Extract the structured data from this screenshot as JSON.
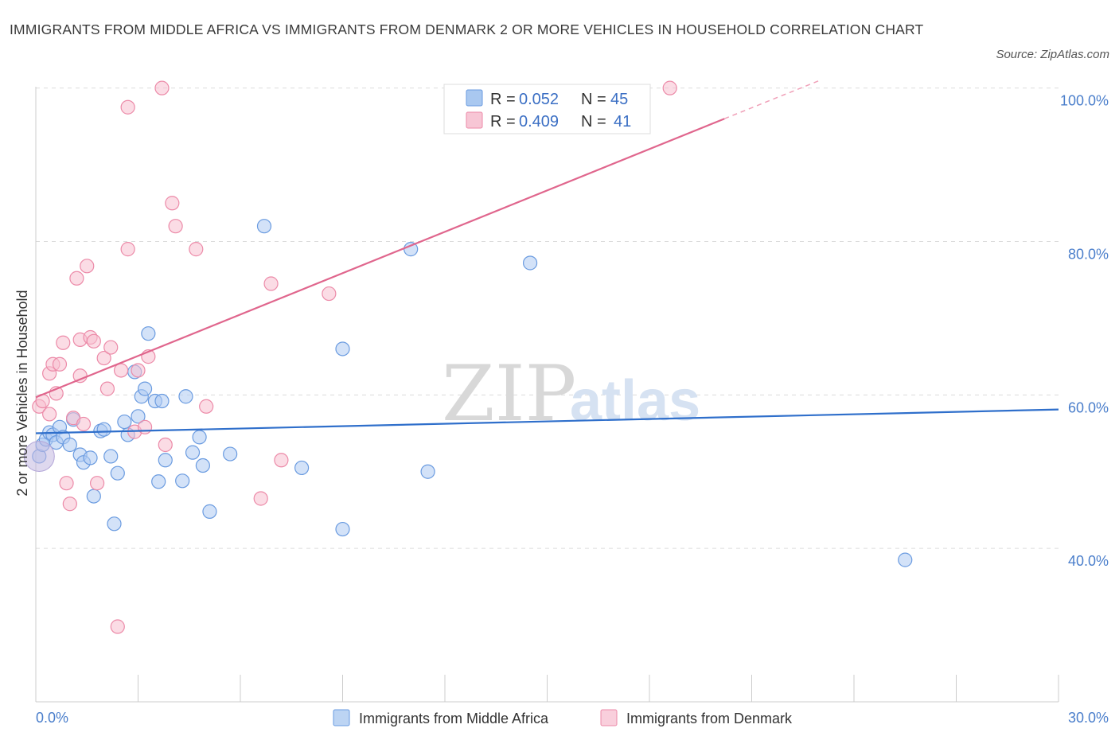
{
  "title": "IMMIGRANTS FROM MIDDLE AFRICA VS IMMIGRANTS FROM DENMARK 2 OR MORE VEHICLES IN HOUSEHOLD CORRELATION CHART",
  "source": "Source: ZipAtlas.com",
  "watermark": {
    "zip": "ZIP",
    "atlas": "atlas"
  },
  "legend": {
    "r_label": "R =",
    "n_label": "N =",
    "series": [
      {
        "r": "0.052",
        "n": "45",
        "color": "#a9c8f0"
      },
      {
        "r": "0.409",
        "n": "41",
        "color": "#f7b8ca"
      }
    ]
  },
  "chart_data": {
    "type": "scatter",
    "ylabel": "2 or more Vehicles in Household",
    "xlabel": "",
    "x_tick_labels": [
      "0.0%",
      "30.0%"
    ],
    "y_tick_labels": [
      "100.0%",
      "80.0%",
      "60.0%",
      "40.0%"
    ],
    "xlim": [
      0,
      30
    ],
    "ylim": [
      20,
      101
    ],
    "y_ticks": [
      100,
      80,
      60,
      40
    ],
    "grid": true,
    "legend_position": "bottom",
    "series": [
      {
        "name": "Immigrants from Middle Africa",
        "color": "#6a9be0",
        "fill": "#aecbf2",
        "trend": {
          "x0": 0,
          "y0": 55.0,
          "x1": 30,
          "y1": 58.1
        },
        "points": [
          [
            0.1,
            52.0
          ],
          [
            0.2,
            53.5
          ],
          [
            0.3,
            54.2
          ],
          [
            0.4,
            55.1
          ],
          [
            0.5,
            54.8
          ],
          [
            0.6,
            53.8
          ],
          [
            0.7,
            55.8
          ],
          [
            0.8,
            54.5
          ],
          [
            1.0,
            53.5
          ],
          [
            1.1,
            56.8
          ],
          [
            1.3,
            52.2
          ],
          [
            1.4,
            51.2
          ],
          [
            1.6,
            51.8
          ],
          [
            1.7,
            46.8
          ],
          [
            1.9,
            55.3
          ],
          [
            2.0,
            55.5
          ],
          [
            2.2,
            52.0
          ],
          [
            2.3,
            43.2
          ],
          [
            2.4,
            49.8
          ],
          [
            2.6,
            56.5
          ],
          [
            2.7,
            54.8
          ],
          [
            2.9,
            63.0
          ],
          [
            3.0,
            57.2
          ],
          [
            3.1,
            59.8
          ],
          [
            3.2,
            60.8
          ],
          [
            3.3,
            68.0
          ],
          [
            3.5,
            59.2
          ],
          [
            3.6,
            48.7
          ],
          [
            3.7,
            59.2
          ],
          [
            3.8,
            51.5
          ],
          [
            4.3,
            48.8
          ],
          [
            4.4,
            59.8
          ],
          [
            4.6,
            52.5
          ],
          [
            4.8,
            54.5
          ],
          [
            4.9,
            50.8
          ],
          [
            5.1,
            44.8
          ],
          [
            5.7,
            52.3
          ],
          [
            6.7,
            82.0
          ],
          [
            7.8,
            50.5
          ],
          [
            9.0,
            66.0
          ],
          [
            9.0,
            42.5
          ],
          [
            11.0,
            79.0
          ],
          [
            11.5,
            50.0
          ],
          [
            14.5,
            77.2
          ],
          [
            25.5,
            38.5
          ]
        ]
      },
      {
        "name": "Immigrants from Denmark",
        "color": "#ec8aa8",
        "fill": "#f7bfd0",
        "trend": {
          "x0": 0,
          "y0": 59.7,
          "x1": 20.2,
          "y1": 96.0
        },
        "trend_dashed": {
          "x0": 20.2,
          "y0": 96.0,
          "x1": 23.0,
          "y1": 101.0
        },
        "points": [
          [
            0.1,
            58.5
          ],
          [
            0.2,
            59.2
          ],
          [
            0.4,
            57.5
          ],
          [
            0.4,
            62.8
          ],
          [
            0.5,
            64.0
          ],
          [
            0.6,
            60.2
          ],
          [
            0.7,
            64.0
          ],
          [
            0.8,
            66.8
          ],
          [
            0.9,
            48.5
          ],
          [
            1.0,
            45.8
          ],
          [
            1.1,
            57.0
          ],
          [
            1.2,
            75.2
          ],
          [
            1.3,
            67.2
          ],
          [
            1.3,
            62.5
          ],
          [
            1.4,
            56.2
          ],
          [
            1.5,
            76.8
          ],
          [
            1.6,
            67.5
          ],
          [
            1.7,
            67.0
          ],
          [
            1.8,
            48.5
          ],
          [
            2.0,
            64.8
          ],
          [
            2.1,
            60.8
          ],
          [
            2.2,
            66.2
          ],
          [
            2.4,
            29.8
          ],
          [
            2.5,
            63.2
          ],
          [
            2.7,
            79.0
          ],
          [
            2.7,
            97.5
          ],
          [
            2.9,
            55.2
          ],
          [
            3.0,
            63.2
          ],
          [
            3.2,
            55.8
          ],
          [
            3.3,
            65.0
          ],
          [
            3.7,
            100.0
          ],
          [
            3.8,
            53.5
          ],
          [
            4.0,
            85.0
          ],
          [
            4.1,
            82.0
          ],
          [
            4.7,
            79.0
          ],
          [
            5.0,
            58.5
          ],
          [
            6.6,
            46.5
          ],
          [
            6.9,
            74.5
          ],
          [
            7.2,
            51.5
          ],
          [
            8.6,
            73.2
          ],
          [
            18.6,
            100.0
          ]
        ]
      }
    ]
  }
}
